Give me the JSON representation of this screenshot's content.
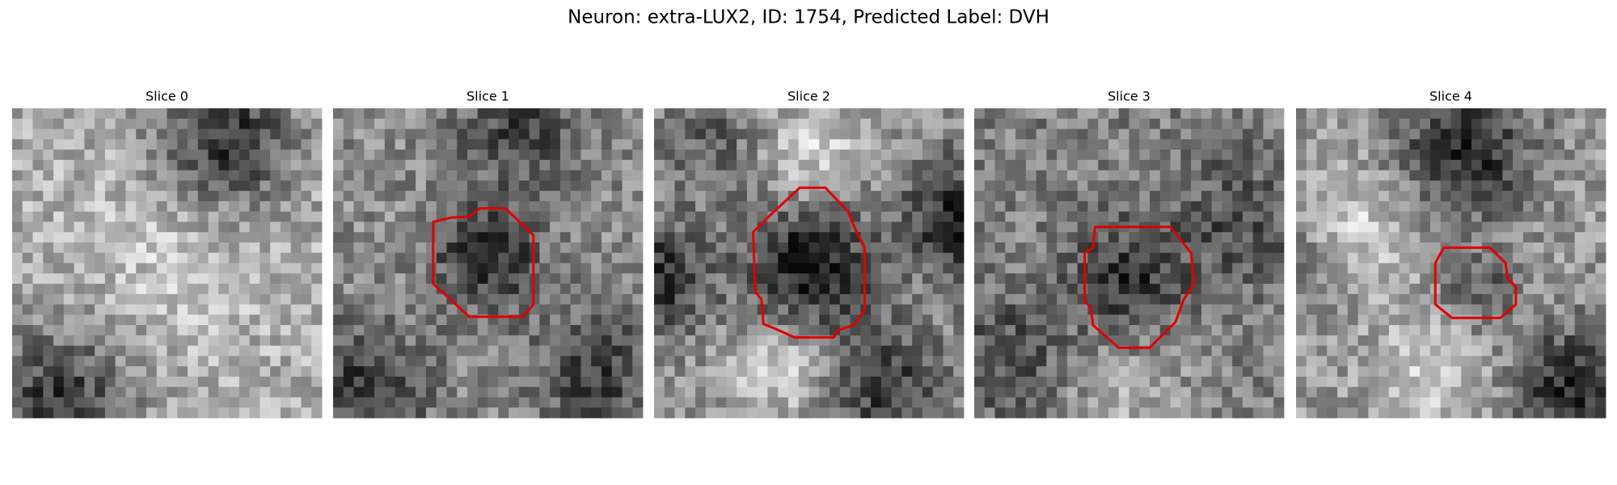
{
  "header": {
    "title": "Neuron: extra-LUX2, ID: 1754, Predicted Label: DVH"
  },
  "panels": [
    {
      "title": "Slice 0"
    },
    {
      "title": "Slice 1"
    },
    {
      "title": "Slice 2"
    },
    {
      "title": "Slice 3"
    },
    {
      "title": "Slice 4"
    }
  ]
}
